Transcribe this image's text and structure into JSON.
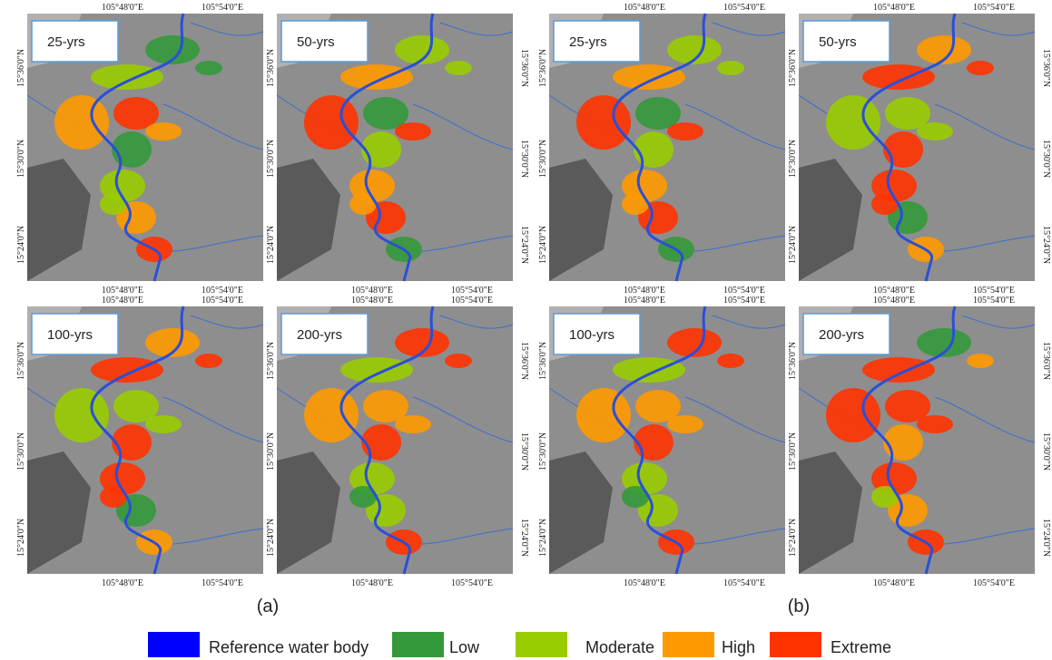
{
  "panels": [
    {
      "caption": "(a)",
      "maps": [
        {
          "label": "25-yrs",
          "lon_top": [
            "105°48'0\"E",
            "105°54'0\"E"
          ],
          "lon_bottom": [
            "105°48'0\"E",
            "105°54'0\"E"
          ],
          "lat_left": [
            "15°36'0\"N",
            "15°30'0\"N",
            "15°24'0\"N"
          ],
          "lat_right": []
        },
        {
          "label": "50-yrs",
          "lon_top": [],
          "lon_bottom": [
            "105°48'0\"E",
            "105°54'0\"E"
          ],
          "lat_left": [
            "15°36'0\"N",
            "15°30'0\"N",
            "15°24'0\"N"
          ],
          "lat_right": [
            "15°36'0\"N",
            "15°30'0\"N",
            "15°24'0\"N"
          ]
        },
        {
          "label": "100-yrs",
          "lon_top": [
            "105°48'0\"E",
            "105°54'0\"E"
          ],
          "lon_bottom": [
            "105°48'0\"E",
            "105°54'0\"E"
          ],
          "lat_left": [
            "15°36'0\"N",
            "15°30'0\"N",
            "15°24'0\"N"
          ],
          "lat_right": []
        },
        {
          "label": "200-yrs",
          "lon_top": [
            "105°48'0\"E",
            "105°54'0\"E"
          ],
          "lon_bottom": [
            "105°48'0\"E",
            "105°54'0\"E"
          ],
          "lat_left": [
            "15°36'0\"N",
            "15°30'0\"N",
            "15°24'0\"N"
          ],
          "lat_right": [
            "15°36'0\"N",
            "15°30'0\"N",
            "15°24'0\"N"
          ]
        }
      ]
    },
    {
      "caption": "(b)",
      "maps": [
        {
          "label": "25-yrs",
          "lon_top": [
            "105°48'0\"E",
            "105°54'0\"E"
          ],
          "lon_bottom": [
            "105°48'0\"E",
            "105°54'0\"E"
          ],
          "lat_left": [
            "15°36'0\"N",
            "15°30'0\"N",
            "15°24'0\"N"
          ],
          "lat_right": []
        },
        {
          "label": "50-yrs",
          "lon_top": [
            "105°48'0\"E",
            "105°54'0\"E"
          ],
          "lon_bottom": [
            "105°48'0\"E",
            "105°54'0\"E"
          ],
          "lat_left": [
            "15°36'0\"N",
            "15°30'0\"N",
            "15°24'0\"N"
          ],
          "lat_right": [
            "15°36'0\"N",
            "15°30'0\"N",
            "15°24'0\"N"
          ]
        },
        {
          "label": "100-yrs",
          "lon_top": [
            "105°48'0\"E",
            "105°54'0\"E"
          ],
          "lon_bottom": [
            "105°48'0\"E",
            "105°54'0\"E"
          ],
          "lat_left": [
            "15°36'0\"N",
            "15°30'0\"N",
            "15°24'0\"N"
          ],
          "lat_right": []
        },
        {
          "label": "200-yrs",
          "lon_top": [
            "105°48'0\"E",
            "105°54'0\"E"
          ],
          "lon_bottom": [
            "105°48'0\"E",
            "105°54'0\"E"
          ],
          "lat_left": [
            "15°36'0\"N",
            "15°30'0\"N",
            "15°24'0\"N"
          ],
          "lat_right": [
            "15°36'0\"N",
            "15°30'0\"N",
            "15°24'0\"N"
          ]
        }
      ]
    }
  ],
  "legend": [
    {
      "label": "Reference water body",
      "color": "#0000ff"
    },
    {
      "label": "Low",
      "color": "#33993a"
    },
    {
      "label": "Moderate",
      "color": "#99cc00"
    },
    {
      "label": "High",
      "color": "#ff9900"
    },
    {
      "label": "Extreme",
      "color": "#ff3300"
    }
  ]
}
